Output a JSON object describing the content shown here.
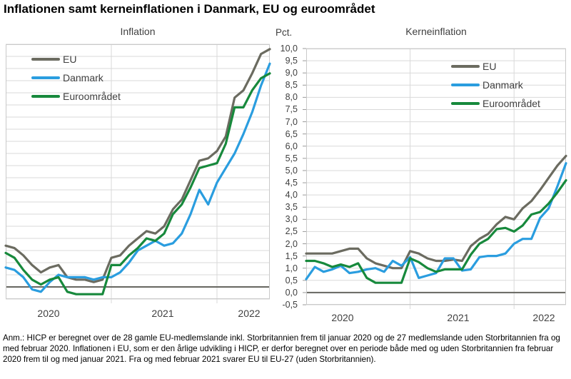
{
  "page": {
    "title": "Inflationen samt kerneinflationen i Danmark, EU og euroområdet",
    "note": "Anm.: HICP er beregnet over de 28 gamle EU-medlemslande inkl. Storbritannien frem til januar 2020 og de 27 medlemslande uden Storbritannien fra og med februar 2020. Inflationen i EU, som er den årlige udvikling i HICP, er derfor beregnet over en periode både med og uden Storbritannien fra februar 2020 frem til og med januar 2021. Fra og med februar 2021 svarer EU til EU-27 (uden Storbritannien)."
  },
  "axis": {
    "unit_label": "Pct.",
    "y_min": -0.5,
    "y_max": 10.0,
    "y_step": 0.5,
    "x_tick_labels": [
      "2020",
      "2021",
      "2022"
    ]
  },
  "colors": {
    "eu": "#6b6b60",
    "danmark": "#2a9ddf",
    "euroomraadet": "#17893c",
    "grid": "#d9d9d9",
    "border": "#c9c9c9",
    "zero_line": "#666660",
    "axis_text": "#404040"
  },
  "chart_data": [
    {
      "type": "line",
      "title": "Inflation",
      "x_freq": "monthly",
      "x_start": "2020-01",
      "x_end": "2022-07",
      "x_tick_labels": [
        "2020",
        "2021",
        "2022"
      ],
      "ylabel": "Pct.",
      "ylim": [
        -0.5,
        10.0
      ],
      "y_step": 0.5,
      "grid": true,
      "legend_position": "top-left",
      "series": [
        {
          "name": "EU",
          "color": "#6b6b60",
          "values": [
            1.7,
            1.6,
            1.3,
            0.9,
            0.6,
            0.8,
            0.9,
            0.4,
            0.3,
            0.3,
            0.2,
            0.3,
            1.2,
            1.3,
            1.7,
            2.0,
            2.3,
            2.2,
            2.5,
            3.2,
            3.6,
            4.4,
            5.2,
            5.3,
            5.6,
            6.2,
            7.8,
            8.1,
            8.8,
            9.6,
            9.8
          ]
        },
        {
          "name": "Danmark",
          "color": "#2a9ddf",
          "values": [
            0.8,
            0.7,
            0.4,
            -0.1,
            -0.2,
            0.2,
            0.5,
            0.4,
            0.4,
            0.4,
            0.3,
            0.4,
            0.4,
            0.6,
            1.0,
            1.5,
            1.7,
            1.9,
            1.7,
            1.8,
            2.2,
            3.0,
            4.0,
            3.4,
            4.3,
            4.9,
            5.5,
            6.3,
            7.2,
            8.3,
            9.2
          ]
        },
        {
          "name": "Euroområdet",
          "color": "#17893c",
          "values": [
            1.4,
            1.2,
            0.7,
            0.3,
            0.1,
            0.3,
            0.4,
            -0.2,
            -0.3,
            -0.3,
            -0.3,
            -0.3,
            0.9,
            0.9,
            1.3,
            1.6,
            2.0,
            1.9,
            2.2,
            3.0,
            3.4,
            4.1,
            4.9,
            5.0,
            5.1,
            5.9,
            7.4,
            7.4,
            8.1,
            8.6,
            8.8
          ]
        }
      ]
    },
    {
      "type": "line",
      "title": "Kerneinflation",
      "x_freq": "monthly",
      "x_start": "2020-01",
      "x_end": "2022-07",
      "x_tick_labels": [
        "2020",
        "2021",
        "2022"
      ],
      "ylabel": "Pct.",
      "ylim": [
        -0.5,
        10.0
      ],
      "y_step": 0.5,
      "grid": true,
      "legend_position": "top-center",
      "series": [
        {
          "name": "EU",
          "color": "#6b6b60",
          "values": [
            1.6,
            1.6,
            1.6,
            1.6,
            1.7,
            1.8,
            1.8,
            1.4,
            1.2,
            1.1,
            1.0,
            1.0,
            1.7,
            1.6,
            1.4,
            1.3,
            1.3,
            1.35,
            1.3,
            1.9,
            2.2,
            2.4,
            2.8,
            3.1,
            3.0,
            3.45,
            3.75,
            4.2,
            4.7,
            5.2,
            5.6
          ]
        },
        {
          "name": "Danmark",
          "color": "#2a9ddf",
          "values": [
            0.55,
            1.05,
            0.85,
            0.95,
            1.1,
            0.8,
            0.85,
            0.95,
            1.0,
            0.85,
            1.3,
            1.1,
            1.45,
            0.6,
            0.7,
            0.8,
            1.4,
            1.4,
            0.9,
            0.95,
            1.45,
            1.5,
            1.5,
            1.6,
            2.0,
            2.2,
            2.2,
            3.05,
            3.45,
            4.35,
            5.3
          ]
        },
        {
          "name": "Euroområdet",
          "color": "#17893c",
          "values": [
            1.3,
            1.3,
            1.2,
            1.05,
            1.15,
            1.05,
            1.2,
            0.6,
            0.4,
            0.4,
            0.4,
            0.4,
            1.4,
            1.25,
            1.0,
            0.85,
            0.95,
            0.95,
            0.95,
            1.55,
            2.0,
            2.2,
            2.6,
            2.65,
            2.5,
            2.75,
            3.2,
            3.3,
            3.65,
            4.1,
            4.6
          ]
        }
      ]
    }
  ]
}
